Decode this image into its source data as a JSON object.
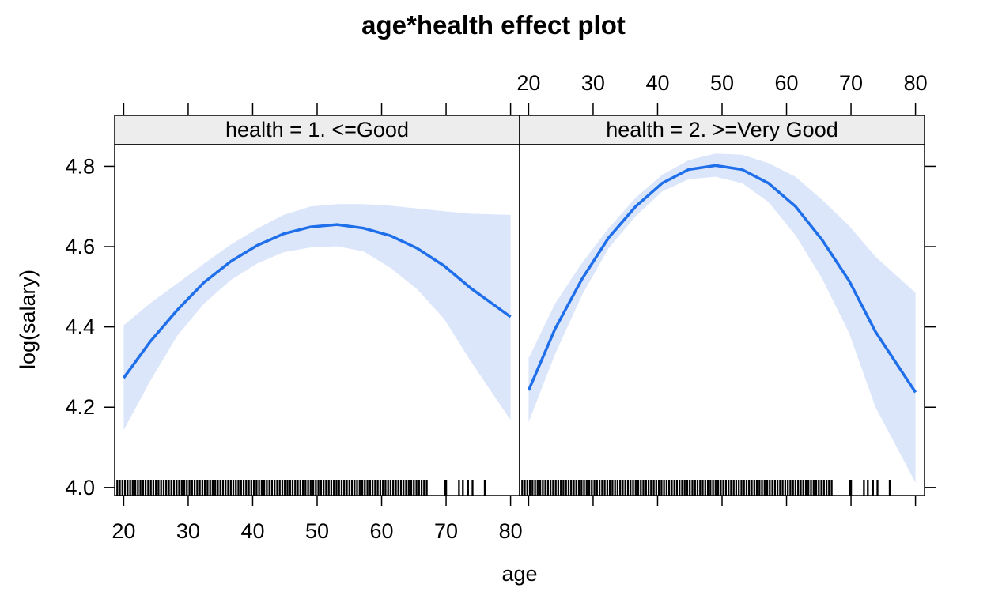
{
  "chart_data": {
    "type": "line",
    "title": "age*health effect plot",
    "xlabel": "age",
    "ylabel": "log(salary)",
    "xlim": [
      18.6,
      81.4
    ],
    "ylim": [
      3.98,
      4.854
    ],
    "x_ticks": [
      20,
      30,
      40,
      50,
      60,
      70,
      80
    ],
    "y_ticks": [
      4.0,
      4.2,
      4.4,
      4.6,
      4.8
    ],
    "y_tick_labels": [
      "4.0",
      "4.2",
      "4.4",
      "4.6",
      "4.8"
    ],
    "grid": false,
    "line_color": "#1F6FEB",
    "band_color": "#DCE6FB",
    "rug_color": "#000000",
    "strip_color": "#EDEDED",
    "panels": [
      {
        "strip_label": "health = 1. <=Good",
        "x": [
          20,
          24.1,
          28.3,
          32.4,
          36.6,
          40.7,
          44.8,
          49,
          53.1,
          57.2,
          61.4,
          65.5,
          69.7,
          73.8,
          80
        ],
        "fit": [
          4.273,
          4.363,
          4.442,
          4.51,
          4.563,
          4.603,
          4.632,
          4.649,
          4.655,
          4.646,
          4.627,
          4.596,
          4.552,
          4.497,
          4.425
        ],
        "lower": [
          4.143,
          4.265,
          4.378,
          4.457,
          4.517,
          4.558,
          4.586,
          4.598,
          4.601,
          4.588,
          4.547,
          4.494,
          4.42,
          4.315,
          4.168
        ],
        "upper": [
          4.404,
          4.459,
          4.508,
          4.557,
          4.605,
          4.645,
          4.679,
          4.7,
          4.706,
          4.706,
          4.702,
          4.695,
          4.688,
          4.682,
          4.679
        ],
        "rug": [
          18.2,
          18.6,
          19,
          19.4,
          19.8,
          20.2,
          20.6,
          21,
          21.4,
          21.8,
          22.2,
          22.6,
          23,
          23.4,
          23.8,
          24.2,
          24.6,
          25,
          25.4,
          25.8,
          26.2,
          26.6,
          27,
          27.4,
          27.8,
          28.2,
          28.6,
          29,
          29.4,
          29.8,
          30.2,
          30.6,
          31,
          31.4,
          31.8,
          32.2,
          32.6,
          33,
          33.4,
          33.8,
          34.2,
          34.6,
          35,
          35.4,
          35.8,
          36.2,
          36.6,
          37,
          37.4,
          37.8,
          38.2,
          38.6,
          39,
          39.4,
          39.8,
          40.2,
          40.6,
          41,
          41.4,
          41.8,
          42.2,
          42.6,
          43,
          43.4,
          43.8,
          44.2,
          44.6,
          45,
          45.4,
          45.8,
          46.2,
          46.6,
          47,
          47.4,
          47.8,
          48.2,
          48.6,
          49,
          49.4,
          49.8,
          50.2,
          50.6,
          51,
          51.4,
          51.8,
          52.2,
          52.6,
          53,
          53.4,
          53.8,
          54.2,
          54.6,
          55,
          55.4,
          55.8,
          56.2,
          56.6,
          57,
          57.4,
          57.8,
          58.2,
          58.6,
          59,
          59.4,
          59.8,
          60.2,
          60.6,
          61,
          61.4,
          61.8,
          62.2,
          62.6,
          63,
          63.4,
          63.8,
          64.2,
          64.6,
          65,
          65.4,
          65.8,
          66.2,
          66.6,
          67,
          69.8,
          70,
          72,
          72.6,
          73.4,
          74.1,
          76
        ]
      },
      {
        "strip_label": "health = 2. >=Very Good",
        "x": [
          20,
          24.1,
          28.3,
          32.4,
          36.6,
          40.7,
          44.8,
          49,
          53.1,
          57.2,
          61.4,
          65.5,
          69.7,
          73.8,
          80
        ],
        "fit": [
          4.242,
          4.395,
          4.52,
          4.622,
          4.7,
          4.758,
          4.792,
          4.802,
          4.792,
          4.758,
          4.7,
          4.617,
          4.515,
          4.388,
          4.237
        ],
        "lower": [
          4.163,
          4.332,
          4.48,
          4.596,
          4.676,
          4.737,
          4.768,
          4.774,
          4.758,
          4.711,
          4.628,
          4.521,
          4.385,
          4.2,
          4.012
        ],
        "upper": [
          4.322,
          4.458,
          4.56,
          4.646,
          4.722,
          4.779,
          4.815,
          4.832,
          4.829,
          4.808,
          4.774,
          4.717,
          4.652,
          4.575,
          4.485
        ],
        "rug": [
          18.2,
          18.6,
          19,
          19.4,
          19.8,
          20.2,
          20.6,
          21,
          21.4,
          21.8,
          22.2,
          22.6,
          23,
          23.4,
          23.8,
          24.2,
          24.6,
          25,
          25.4,
          25.8,
          26.2,
          26.6,
          27,
          27.4,
          27.8,
          28.2,
          28.6,
          29,
          29.4,
          29.8,
          30.2,
          30.6,
          31,
          31.4,
          31.8,
          32.2,
          32.6,
          33,
          33.4,
          33.8,
          34.2,
          34.6,
          35,
          35.4,
          35.8,
          36.2,
          36.6,
          37,
          37.4,
          37.8,
          38.2,
          38.6,
          39,
          39.4,
          39.8,
          40.2,
          40.6,
          41,
          41.4,
          41.8,
          42.2,
          42.6,
          43,
          43.4,
          43.8,
          44.2,
          44.6,
          45,
          45.4,
          45.8,
          46.2,
          46.6,
          47,
          47.4,
          47.8,
          48.2,
          48.6,
          49,
          49.4,
          49.8,
          50.2,
          50.6,
          51,
          51.4,
          51.8,
          52.2,
          52.6,
          53,
          53.4,
          53.8,
          54.2,
          54.6,
          55,
          55.4,
          55.8,
          56.2,
          56.6,
          57,
          57.4,
          57.8,
          58.2,
          58.6,
          59,
          59.4,
          59.8,
          60.2,
          60.6,
          61,
          61.4,
          61.8,
          62.2,
          62.6,
          63,
          63.4,
          63.8,
          64.2,
          64.6,
          65,
          65.4,
          65.8,
          66.2,
          66.6,
          67,
          69.8,
          70,
          72,
          72.6,
          73.4,
          74.1,
          76
        ]
      }
    ]
  }
}
